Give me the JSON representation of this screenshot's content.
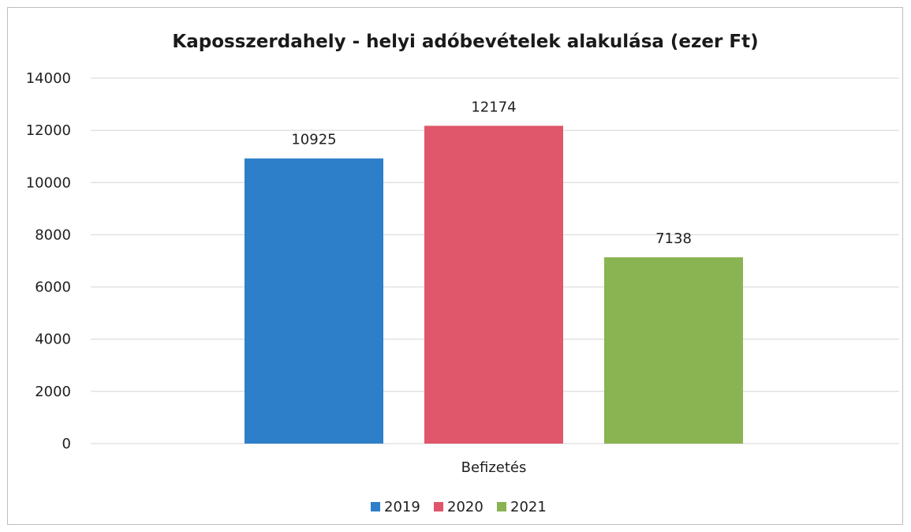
{
  "chart_data": {
    "type": "bar",
    "title": "Kaposszerdahely - helyi adóbevételek alakulása (ezer Ft)",
    "categories": [
      "Befizetés"
    ],
    "series": [
      {
        "name": "2019",
        "values": [
          10925
        ],
        "color": "#2e7fc9"
      },
      {
        "name": "2020",
        "values": [
          12174
        ],
        "color": "#e0566a"
      },
      {
        "name": "2021",
        "values": [
          7138
        ],
        "color": "#8ab352"
      }
    ],
    "ylim": [
      0,
      14000
    ],
    "yticks": [
      0,
      2000,
      4000,
      6000,
      8000,
      10000,
      12000,
      14000
    ],
    "grid": true,
    "legend_position": "bottom"
  }
}
